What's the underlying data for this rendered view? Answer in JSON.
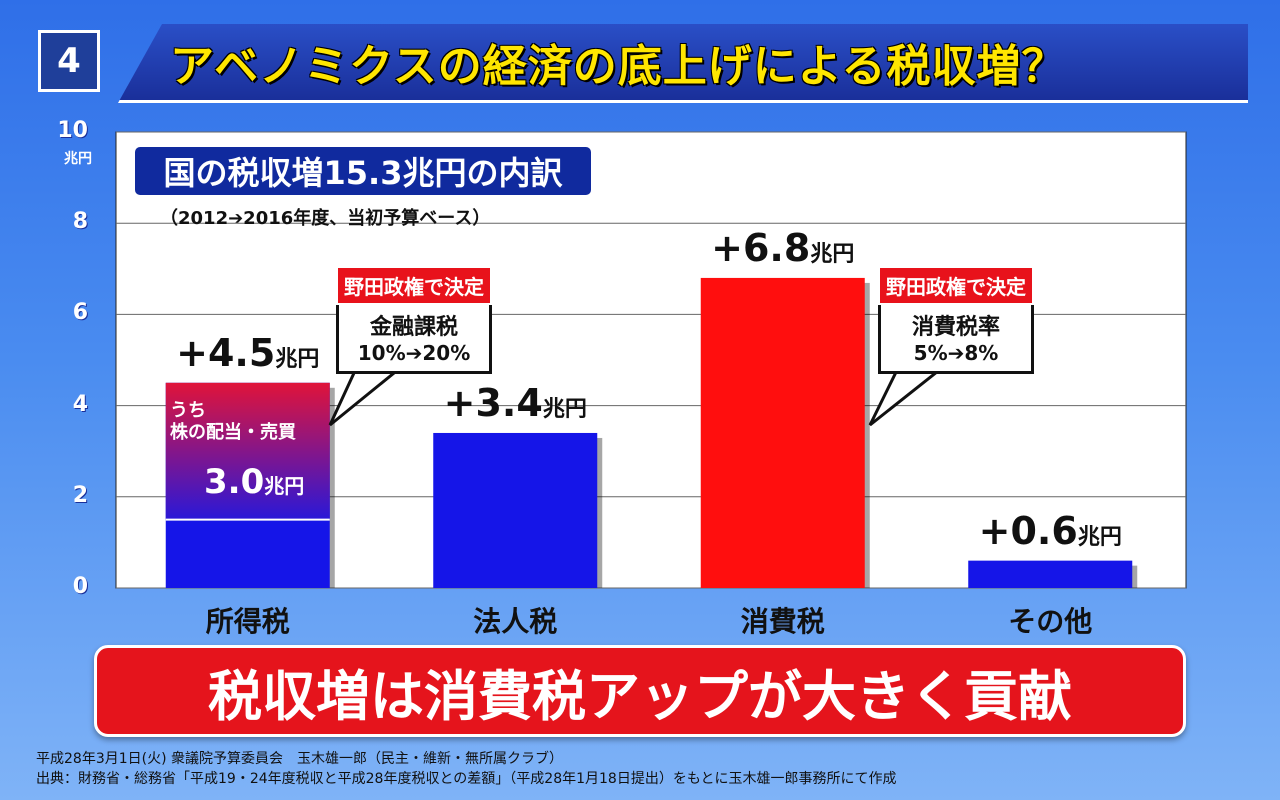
{
  "header": {
    "number": "4",
    "title": "アベノミクスの経済の底上げによる税収増？"
  },
  "chart_data": {
    "type": "bar",
    "categories": [
      "所得税",
      "法人税",
      "消費税",
      "その他"
    ],
    "values": [
      4.5,
      3.4,
      6.8,
      0.6
    ],
    "bar_colors": [
      "#1515e8",
      "#1515e8",
      "#ff0e0e",
      "#1515e8"
    ],
    "stacked_segment": {
      "category": "所得税",
      "from": 1.5,
      "to": 4.5,
      "gradient_top": "#e0143a",
      "gradient_bottom": "#2a18d8"
    },
    "value_labels": [
      "+4.5",
      "+3.4",
      "+6.8",
      "+0.6"
    ],
    "value_unit": "兆円",
    "yticks": [
      "0",
      "2",
      "4",
      "6",
      "8",
      "10"
    ],
    "y_unit": "兆円",
    "ylim": [
      0,
      10
    ],
    "grid": true,
    "title": "国の税収増15.3兆円の内訳",
    "subtitle": "（2012➔2016年度、当初予算ベース）"
  },
  "in_bar": {
    "line1": "うち",
    "line2": "株の配当・売買",
    "value": "3.0",
    "unit": "兆円"
  },
  "callouts": [
    {
      "tag": "野田政権で決定",
      "line1": "金融課税",
      "line2": "10%➔20%"
    },
    {
      "tag": "野田政権で決定",
      "line1": "消費税率",
      "line2": "5%➔8%"
    }
  ],
  "banner": "税収増は消費税アップが大きく貢献",
  "footer": {
    "line1": "平成28年3月1日(火) 衆議院予算委員会　玉木雄一郎（民主・維新・無所属クラブ）",
    "line2": "出典：財務省・総務省「平成19・24年度税収と平成28年度税収との差額」（平成28年1月18日提出）をもとに玉木雄一郎事務所にて作成"
  }
}
